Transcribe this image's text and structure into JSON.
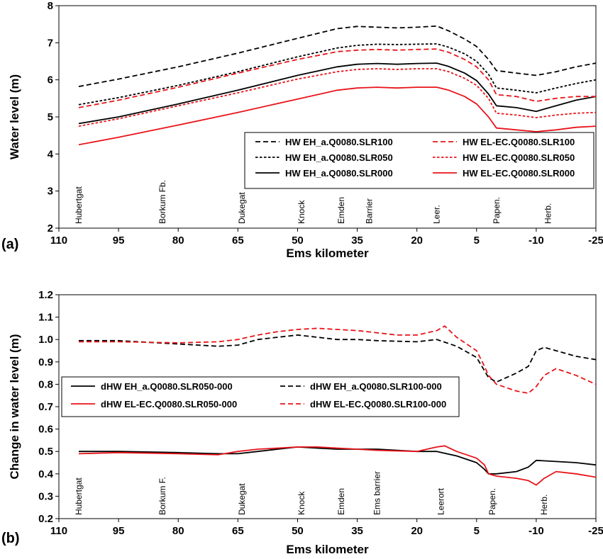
{
  "chart_data": [
    {
      "type": "line",
      "panel_label": "(a)",
      "xlabel": "Ems kilometer",
      "ylabel": "Water level (m)",
      "xlim": [
        110,
        -25
      ],
      "ylim": [
        2,
        8
      ],
      "xticks": [
        110,
        95,
        80,
        65,
        50,
        35,
        20,
        5,
        -10,
        -25
      ],
      "yticks": [
        2,
        3,
        4,
        5,
        6,
        7,
        8
      ],
      "grid": false,
      "legend_position": "lower-right",
      "locations": [
        {
          "name": "Hubertgat",
          "km": 105
        },
        {
          "name": "Borkum Fb.",
          "km": 84
        },
        {
          "name": "Dukegat",
          "km": 64
        },
        {
          "name": "Knock",
          "km": 49
        },
        {
          "name": "Emden",
          "km": 39
        },
        {
          "name": "Barrier",
          "km": 32
        },
        {
          "name": "Leer.",
          "km": 15
        },
        {
          "name": "Papen.",
          "km": 0
        },
        {
          "name": "Herb.",
          "km": -13
        }
      ],
      "series": [
        {
          "name": "HW  EH_a.Q0080.SLR100",
          "color": "#000000",
          "dash": "long",
          "x": [
            105,
            95,
            80,
            65,
            50,
            40,
            35,
            30,
            25,
            20,
            15,
            12,
            8,
            5,
            2,
            0,
            -5,
            -10,
            -15,
            -20,
            -25
          ],
          "y": [
            5.82,
            6.02,
            6.35,
            6.72,
            7.12,
            7.38,
            7.44,
            7.42,
            7.4,
            7.42,
            7.45,
            7.32,
            7.1,
            6.9,
            6.55,
            6.25,
            6.18,
            6.12,
            6.22,
            6.35,
            6.45
          ]
        },
        {
          "name": "HW  EH_a.Q0080.SLR050",
          "color": "#000000",
          "dash": "short",
          "x": [
            105,
            95,
            80,
            65,
            50,
            40,
            35,
            30,
            25,
            20,
            15,
            12,
            8,
            5,
            2,
            0,
            -5,
            -10,
            -15,
            -20,
            -25
          ],
          "y": [
            5.33,
            5.52,
            5.85,
            6.22,
            6.62,
            6.86,
            6.93,
            6.96,
            6.95,
            6.96,
            6.97,
            6.88,
            6.7,
            6.5,
            6.15,
            5.78,
            5.72,
            5.65,
            5.78,
            5.9,
            6.0
          ]
        },
        {
          "name": "HW  EH_a.Q0080.SLR000",
          "color": "#000000",
          "dash": "solid",
          "x": [
            105,
            95,
            80,
            65,
            50,
            40,
            35,
            30,
            25,
            20,
            15,
            12,
            8,
            5,
            2,
            0,
            -5,
            -10,
            -15,
            -20,
            -25
          ],
          "y": [
            4.82,
            5.0,
            5.35,
            5.72,
            6.12,
            6.35,
            6.42,
            6.44,
            6.42,
            6.44,
            6.45,
            6.36,
            6.18,
            5.98,
            5.62,
            5.3,
            5.25,
            5.15,
            5.3,
            5.45,
            5.55
          ]
        },
        {
          "name": "HW  EL-EC.Q0080.SLR100",
          "color": "#e8141a",
          "dash": "long",
          "x": [
            105,
            95,
            80,
            65,
            50,
            40,
            35,
            30,
            25,
            20,
            15,
            12,
            8,
            5,
            2,
            0,
            -5,
            -10,
            -15,
            -20,
            -25
          ],
          "y": [
            5.25,
            5.45,
            5.8,
            6.18,
            6.55,
            6.76,
            6.8,
            6.82,
            6.8,
            6.82,
            6.83,
            6.74,
            6.55,
            6.35,
            6.0,
            5.6,
            5.55,
            5.42,
            5.5,
            5.55,
            5.55
          ]
        },
        {
          "name": "HW  EL-EC.Q0080.SLR050",
          "color": "#e8141a",
          "dash": "short",
          "x": [
            105,
            95,
            80,
            65,
            50,
            40,
            35,
            30,
            25,
            20,
            15,
            12,
            8,
            5,
            2,
            0,
            -5,
            -10,
            -15,
            -20,
            -25
          ],
          "y": [
            4.75,
            4.95,
            5.3,
            5.65,
            6.02,
            6.22,
            6.28,
            6.3,
            6.28,
            6.3,
            6.3,
            6.22,
            6.04,
            5.85,
            5.5,
            5.1,
            5.05,
            4.98,
            5.05,
            5.1,
            5.12
          ]
        },
        {
          "name": "HW  EL-EC.Q0080.SLR000",
          "color": "#e8141a",
          "dash": "solid",
          "x": [
            105,
            95,
            80,
            65,
            50,
            40,
            35,
            30,
            25,
            20,
            15,
            12,
            8,
            5,
            2,
            0,
            -5,
            -10,
            -15,
            -20,
            -25
          ],
          "y": [
            4.25,
            4.45,
            4.78,
            5.12,
            5.48,
            5.72,
            5.78,
            5.8,
            5.78,
            5.8,
            5.8,
            5.72,
            5.55,
            5.35,
            5.0,
            4.7,
            4.65,
            4.6,
            4.65,
            4.72,
            4.75
          ]
        }
      ]
    },
    {
      "type": "line",
      "panel_label": "(b)",
      "xlabel": "Ems kilometer",
      "ylabel": "Change in water level (m)",
      "xlim": [
        110,
        -25
      ],
      "ylim": [
        0.2,
        1.2
      ],
      "xticks": [
        110,
        95,
        80,
        65,
        50,
        35,
        20,
        5,
        -10,
        -25
      ],
      "yticks": [
        0.2,
        0.3,
        0.4,
        0.5,
        0.6,
        0.7,
        0.8,
        0.9,
        1.0,
        1.1,
        1.2
      ],
      "grid": false,
      "legend_position": "center-left",
      "locations": [
        {
          "name": "Hubertgat",
          "km": 105
        },
        {
          "name": "Borkum F.",
          "km": 84
        },
        {
          "name": "Dukegat",
          "km": 64
        },
        {
          "name": "Knock",
          "km": 49
        },
        {
          "name": "Emden",
          "km": 39
        },
        {
          "name": "Ems barrier",
          "km": 30
        },
        {
          "name": "Leerort",
          "km": 14
        },
        {
          "name": "Papen.",
          "km": 1
        },
        {
          "name": "Herb.",
          "km": -12
        }
      ],
      "series": [
        {
          "name": "dHW  EH_a.Q0080.SLR050-000",
          "color": "#000000",
          "dash": "solid",
          "x": [
            105,
            95,
            80,
            70,
            65,
            60,
            55,
            50,
            45,
            40,
            35,
            30,
            20,
            15,
            10,
            5,
            3,
            2,
            0,
            -5,
            -8,
            -10,
            -15,
            -20,
            -25
          ],
          "y": [
            0.5,
            0.5,
            0.495,
            0.49,
            0.49,
            0.5,
            0.51,
            0.52,
            0.515,
            0.51,
            0.51,
            0.51,
            0.5,
            0.5,
            0.48,
            0.45,
            0.42,
            0.4,
            0.4,
            0.41,
            0.43,
            0.46,
            0.455,
            0.45,
            0.44
          ]
        },
        {
          "name": "dHW  EL-EC.Q0080.SLR050-000",
          "color": "#e8141a",
          "dash": "solid",
          "x": [
            105,
            95,
            80,
            70,
            65,
            60,
            55,
            50,
            45,
            40,
            35,
            30,
            20,
            15,
            13,
            10,
            5,
            3,
            2,
            0,
            -5,
            -8,
            -10,
            -12,
            -15,
            -20,
            -25
          ],
          "y": [
            0.49,
            0.495,
            0.49,
            0.485,
            0.5,
            0.51,
            0.515,
            0.52,
            0.52,
            0.515,
            0.51,
            0.505,
            0.5,
            0.52,
            0.525,
            0.5,
            0.47,
            0.44,
            0.4,
            0.39,
            0.38,
            0.37,
            0.35,
            0.38,
            0.41,
            0.4,
            0.385
          ]
        },
        {
          "name": "dHW  EH_a.Q0080.SLR100-000",
          "color": "#000000",
          "dash": "long",
          "x": [
            105,
            95,
            80,
            70,
            65,
            60,
            55,
            50,
            45,
            40,
            35,
            30,
            20,
            15,
            10,
            5,
            3,
            2,
            0,
            -5,
            -8,
            -10,
            -12,
            -15,
            -20,
            -25
          ],
          "y": [
            0.995,
            0.995,
            0.98,
            0.97,
            0.975,
            1.0,
            1.01,
            1.02,
            1.01,
            1.0,
            1.0,
            0.995,
            0.99,
            1.0,
            0.97,
            0.92,
            0.86,
            0.83,
            0.81,
            0.85,
            0.88,
            0.95,
            0.965,
            0.95,
            0.925,
            0.91
          ]
        },
        {
          "name": "dHW  EL-EC.Q0080.SLR100-000",
          "color": "#e8141a",
          "dash": "long",
          "x": [
            105,
            95,
            80,
            70,
            65,
            60,
            55,
            50,
            45,
            40,
            35,
            30,
            25,
            20,
            15,
            13,
            10,
            5,
            3,
            2,
            0,
            -5,
            -8,
            -10,
            -12,
            -15,
            -20,
            -25
          ],
          "y": [
            0.99,
            0.99,
            0.985,
            0.99,
            1.0,
            1.02,
            1.035,
            1.045,
            1.05,
            1.045,
            1.04,
            1.03,
            1.02,
            1.02,
            1.04,
            1.06,
            1.01,
            0.95,
            0.88,
            0.84,
            0.8,
            0.77,
            0.76,
            0.79,
            0.84,
            0.87,
            0.84,
            0.8
          ]
        }
      ]
    }
  ]
}
